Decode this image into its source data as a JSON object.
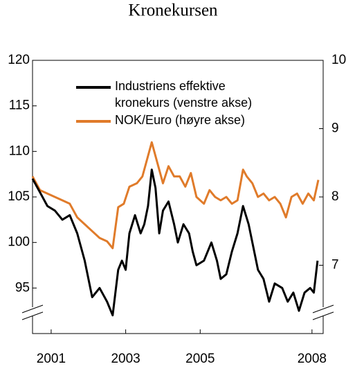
{
  "chart_data": {
    "type": "line",
    "title": "Kronekursen",
    "xlim": [
      2000.5,
      2008.3
    ],
    "xticks": [
      2001,
      2003,
      2005,
      2008
    ],
    "ylim": [
      90,
      120
    ],
    "yticks": [
      95,
      100,
      105,
      110,
      115,
      120
    ],
    "y2lim": [
      6,
      10
    ],
    "y2ticks": [
      7,
      8,
      9,
      10
    ],
    "series": [
      {
        "name": "Industriens effektive kronekurs (venstre akse)",
        "color": "#000000",
        "x": [
          2000.5,
          2000.7,
          2000.9,
          2001.1,
          2001.3,
          2001.5,
          2001.7,
          2001.9,
          2002.0,
          2002.1,
          2002.3,
          2002.5,
          2002.65,
          2002.8,
          2002.9,
          2003.0,
          2003.1,
          2003.25,
          2003.4,
          2003.5,
          2003.6,
          2003.7,
          2003.8,
          2003.9,
          2004.0,
          2004.15,
          2004.3,
          2004.4,
          2004.55,
          2004.7,
          2004.8,
          2004.9,
          2005.1,
          2005.3,
          2005.45,
          2005.55,
          2005.7,
          2005.85,
          2006.0,
          2006.15,
          2006.3,
          2006.4,
          2006.55,
          2006.7,
          2006.85,
          2007.0,
          2007.2,
          2007.35,
          2007.5,
          2007.65,
          2007.8,
          2007.95,
          2008.05,
          2008.15
        ],
        "values": [
          107,
          105.5,
          104,
          103.5,
          102.5,
          103,
          101,
          98,
          96,
          94,
          95,
          93.5,
          92,
          97,
          98,
          97,
          101,
          103,
          101,
          102,
          104,
          108,
          106,
          101,
          103.5,
          104.5,
          102,
          100,
          102,
          101,
          99,
          97.5,
          98,
          100,
          98,
          96,
          96.5,
          99,
          101,
          104,
          102,
          100,
          97,
          96,
          93.5,
          95.5,
          95,
          93.5,
          94.5,
          92.5,
          94.5,
          95,
          94.5,
          98
        ]
      },
      {
        "name": "NOK/Euro (høyre akse)",
        "color": "#e07b2a",
        "axis": "y2",
        "x": [
          2000.5,
          2000.7,
          2000.9,
          2001.1,
          2001.3,
          2001.5,
          2001.7,
          2001.9,
          2002.1,
          2002.3,
          2002.5,
          2002.65,
          2002.8,
          2002.95,
          2003.1,
          2003.3,
          2003.45,
          2003.6,
          2003.7,
          2003.85,
          2004.0,
          2004.15,
          2004.3,
          2004.45,
          2004.6,
          2004.75,
          2004.9,
          2005.1,
          2005.25,
          2005.4,
          2005.55,
          2005.7,
          2005.85,
          2006.0,
          2006.15,
          2006.25,
          2006.4,
          2006.55,
          2006.7,
          2006.85,
          2007.0,
          2007.15,
          2007.3,
          2007.45,
          2007.6,
          2007.75,
          2007.9,
          2008.05,
          2008.17
        ],
        "values": [
          8.3,
          8.1,
          8.05,
          8.0,
          7.95,
          7.9,
          7.7,
          7.6,
          7.5,
          7.4,
          7.35,
          7.25,
          7.85,
          7.9,
          8.15,
          8.2,
          8.3,
          8.6,
          8.8,
          8.5,
          8.2,
          8.45,
          8.3,
          8.3,
          8.15,
          8.35,
          8.0,
          7.9,
          8.1,
          8.0,
          7.95,
          8.0,
          7.9,
          7.95,
          8.4,
          8.3,
          8.2,
          8.0,
          8.05,
          7.95,
          8.0,
          7.9,
          7.7,
          8.0,
          8.05,
          7.9,
          8.05,
          7.95,
          8.25
        ]
      }
    ]
  }
}
